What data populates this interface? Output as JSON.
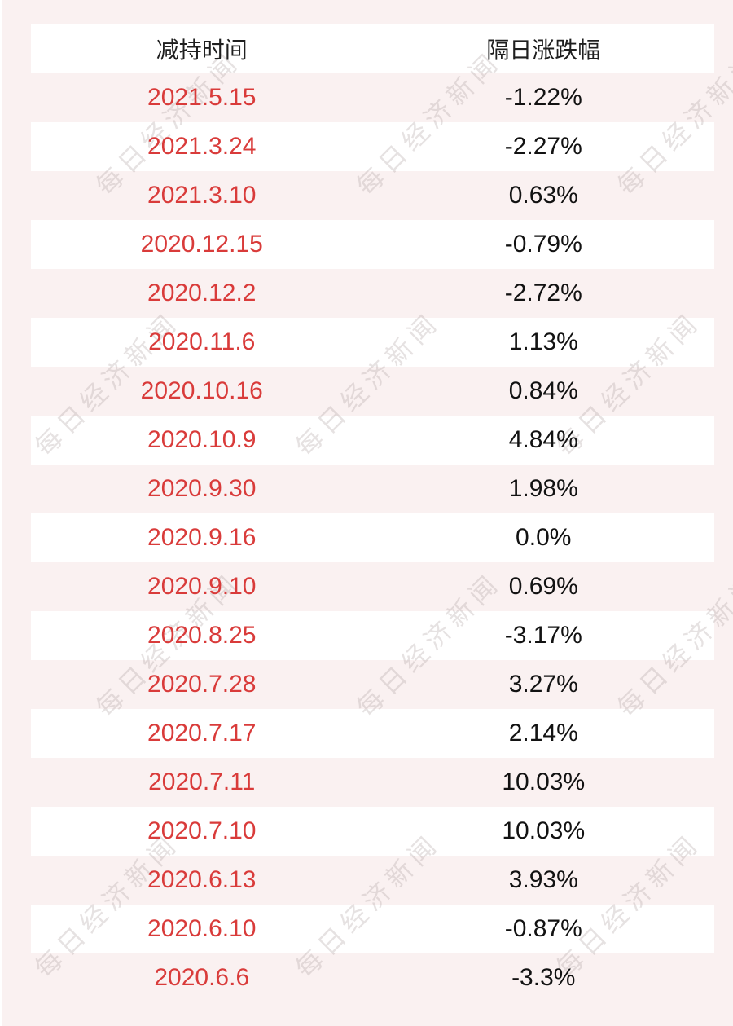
{
  "page": {
    "background_color": "#faf1f1",
    "stripe_color": "#ffffff"
  },
  "watermark": {
    "text": "每日经济新闻",
    "color": "rgba(164,150,150,0.28)"
  },
  "table": {
    "headers": [
      "减持时间",
      "隔日涨跌幅"
    ],
    "date_color": "#d93b3a",
    "value_color": "#121212",
    "rows": [
      {
        "date": "2021.5.15",
        "change": "-1.22%"
      },
      {
        "date": "2021.3.24",
        "change": "-2.27%"
      },
      {
        "date": "2021.3.10",
        "change": "0.63%"
      },
      {
        "date": "2020.12.15",
        "change": "-0.79%"
      },
      {
        "date": "2020.12.2",
        "change": "-2.72%"
      },
      {
        "date": "2020.11.6",
        "change": "1.13%"
      },
      {
        "date": "2020.10.16",
        "change": "0.84%"
      },
      {
        "date": "2020.10.9",
        "change": "4.84%"
      },
      {
        "date": "2020.9.30",
        "change": "1.98%"
      },
      {
        "date": "2020.9.16",
        "change": "0.0%"
      },
      {
        "date": "2020.9.10",
        "change": "0.69%"
      },
      {
        "date": "2020.8.25",
        "change": "-3.17%"
      },
      {
        "date": "2020.7.28",
        "change": "3.27%"
      },
      {
        "date": "2020.7.17",
        "change": "2.14%"
      },
      {
        "date": "2020.7.11",
        "change": "10.03%"
      },
      {
        "date": "2020.7.10",
        "change": "10.03%"
      },
      {
        "date": "2020.6.13",
        "change": "3.93%"
      },
      {
        "date": "2020.6.10",
        "change": "-0.87%"
      },
      {
        "date": "2020.6.6",
        "change": "-3.3%"
      }
    ]
  },
  "chart_data": {
    "type": "table",
    "title": "",
    "columns": [
      "减持时间",
      "隔日涨跌幅"
    ],
    "categories": [
      "2021.5.15",
      "2021.3.24",
      "2021.3.10",
      "2020.12.15",
      "2020.12.2",
      "2020.11.6",
      "2020.10.16",
      "2020.10.9",
      "2020.9.30",
      "2020.9.16",
      "2020.9.10",
      "2020.8.25",
      "2020.7.28",
      "2020.7.17",
      "2020.7.11",
      "2020.7.10",
      "2020.6.13",
      "2020.6.10",
      "2020.6.6"
    ],
    "values": [
      -1.22,
      -2.27,
      0.63,
      -0.79,
      -2.72,
      1.13,
      0.84,
      4.84,
      1.98,
      0.0,
      0.69,
      -3.17,
      3.27,
      2.14,
      10.03,
      10.03,
      3.93,
      -0.87,
      -3.3
    ],
    "value_unit": "%",
    "grid": false,
    "legend": false
  }
}
